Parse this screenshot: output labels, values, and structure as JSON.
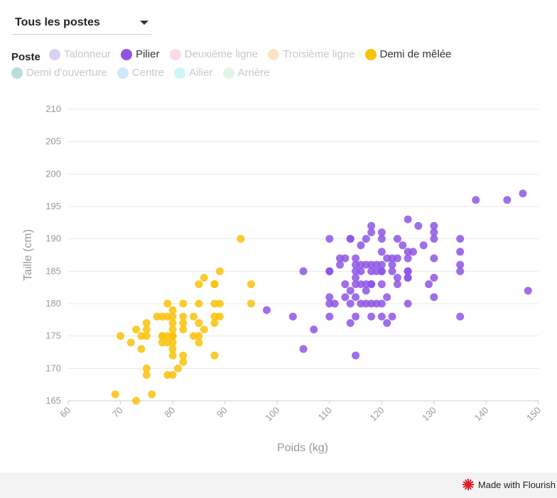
{
  "filter": {
    "selected": "Tous les postes"
  },
  "legend": {
    "title": "Poste",
    "items": [
      {
        "label": "Talonneur",
        "color": "#d6d2f5",
        "active": false
      },
      {
        "label": "Pilier",
        "color": "#8e55e5",
        "active": true
      },
      {
        "label": "Deuxième ligne",
        "color": "#fadde3",
        "active": false
      },
      {
        "label": "Troisième ligne",
        "color": "#fde3c6",
        "active": false
      },
      {
        "label": "Demi de mêlée",
        "color": "#f9c20a",
        "active": true
      },
      {
        "label": "Demi d'ouverture",
        "color": "#bcdce0",
        "active": false
      },
      {
        "label": "Centre",
        "color": "#cfe6fb",
        "active": false
      },
      {
        "label": "Ailier",
        "color": "#ccf6f8",
        "active": false
      },
      {
        "label": "Arrière",
        "color": "#dff6e4",
        "active": false
      }
    ]
  },
  "footer": {
    "credit": "Made with Flourish"
  },
  "chart_data": {
    "type": "scatter",
    "xlabel": "Poids (kg)",
    "ylabel": "Taille (cm)",
    "xlim": [
      60,
      150
    ],
    "ylim": [
      165,
      210
    ],
    "xticks": [
      60,
      70,
      80,
      90,
      100,
      110,
      120,
      130,
      140,
      150
    ],
    "yticks": [
      165,
      170,
      175,
      180,
      185,
      190,
      195,
      200,
      205,
      210
    ],
    "grid": "horizontal",
    "series": [
      {
        "name": "Demi de mêlée",
        "color": "#f9c20a",
        "points": [
          [
            69,
            166
          ],
          [
            70,
            175
          ],
          [
            72,
            174
          ],
          [
            73,
            165
          ],
          [
            73,
            176
          ],
          [
            74,
            173
          ],
          [
            74,
            175
          ],
          [
            75,
            170
          ],
          [
            75,
            169
          ],
          [
            75,
            175
          ],
          [
            75,
            176
          ],
          [
            75,
            177
          ],
          [
            76,
            166
          ],
          [
            77,
            178
          ],
          [
            78,
            178
          ],
          [
            78,
            175
          ],
          [
            78,
            174
          ],
          [
            78,
            175
          ],
          [
            79,
            178
          ],
          [
            79,
            180
          ],
          [
            79,
            175
          ],
          [
            79,
            174
          ],
          [
            79,
            169
          ],
          [
            80,
            179
          ],
          [
            80,
            177
          ],
          [
            80,
            176
          ],
          [
            80,
            175
          ],
          [
            80,
            174
          ],
          [
            80,
            173
          ],
          [
            80,
            172
          ],
          [
            80,
            169
          ],
          [
            80,
            178
          ],
          [
            80,
            175
          ],
          [
            81,
            170
          ],
          [
            82,
            180
          ],
          [
            82,
            178
          ],
          [
            82,
            177
          ],
          [
            82,
            176
          ],
          [
            82,
            172
          ],
          [
            82,
            171
          ],
          [
            84,
            178
          ],
          [
            84,
            175
          ],
          [
            85,
            183
          ],
          [
            85,
            180
          ],
          [
            85,
            177
          ],
          [
            85,
            175
          ],
          [
            85,
            174
          ],
          [
            86,
            184
          ],
          [
            86,
            176
          ],
          [
            88,
            183
          ],
          [
            88,
            183
          ],
          [
            88,
            180
          ],
          [
            88,
            178
          ],
          [
            88,
            177
          ],
          [
            88,
            172
          ],
          [
            89,
            185
          ],
          [
            89,
            180
          ],
          [
            89,
            178
          ],
          [
            93,
            190
          ],
          [
            95,
            183
          ],
          [
            95,
            180
          ]
        ]
      },
      {
        "name": "Pilier",
        "color": "#8e55e5",
        "points": [
          [
            98,
            179
          ],
          [
            103,
            178
          ],
          [
            105,
            185
          ],
          [
            105,
            173
          ],
          [
            107,
            176
          ],
          [
            110,
            190
          ],
          [
            110,
            185
          ],
          [
            110,
            185
          ],
          [
            110,
            181
          ],
          [
            110,
            180
          ],
          [
            110,
            178
          ],
          [
            111,
            180
          ],
          [
            112,
            187
          ],
          [
            112,
            186
          ],
          [
            113,
            187
          ],
          [
            113,
            183
          ],
          [
            113,
            181
          ],
          [
            114,
            190
          ],
          [
            114,
            190
          ],
          [
            114,
            182
          ],
          [
            114,
            180
          ],
          [
            114,
            177
          ],
          [
            115,
            187
          ],
          [
            115,
            186
          ],
          [
            115,
            185
          ],
          [
            115,
            184
          ],
          [
            115,
            183
          ],
          [
            115,
            181
          ],
          [
            115,
            178
          ],
          [
            115,
            172
          ],
          [
            116,
            189
          ],
          [
            116,
            186
          ],
          [
            116,
            185
          ],
          [
            116,
            183
          ],
          [
            116,
            180
          ],
          [
            117,
            190
          ],
          [
            117,
            186
          ],
          [
            117,
            183
          ],
          [
            117,
            182
          ],
          [
            117,
            180
          ],
          [
            118,
            192
          ],
          [
            118,
            191
          ],
          [
            118,
            186
          ],
          [
            118,
            185
          ],
          [
            118,
            183
          ],
          [
            118,
            183
          ],
          [
            118,
            180
          ],
          [
            118,
            178
          ],
          [
            119,
            186
          ],
          [
            119,
            185
          ],
          [
            119,
            180
          ],
          [
            120,
            191
          ],
          [
            120,
            190
          ],
          [
            120,
            188
          ],
          [
            120,
            186
          ],
          [
            120,
            185
          ],
          [
            120,
            185
          ],
          [
            120,
            183
          ],
          [
            120,
            180
          ],
          [
            120,
            178
          ],
          [
            121,
            187
          ],
          [
            121,
            181
          ],
          [
            121,
            177
          ],
          [
            122,
            187
          ],
          [
            122,
            186
          ],
          [
            122,
            185
          ],
          [
            122,
            178
          ],
          [
            123,
            190
          ],
          [
            123,
            187
          ],
          [
            123,
            184
          ],
          [
            123,
            183
          ],
          [
            124,
            189
          ],
          [
            125,
            193
          ],
          [
            125,
            188
          ],
          [
            125,
            187
          ],
          [
            125,
            185
          ],
          [
            125,
            185
          ],
          [
            125,
            184
          ],
          [
            125,
            184
          ],
          [
            125,
            180
          ],
          [
            126,
            188
          ],
          [
            127,
            192
          ],
          [
            128,
            189
          ],
          [
            129,
            183
          ],
          [
            130,
            192
          ],
          [
            130,
            191
          ],
          [
            130,
            190
          ],
          [
            130,
            187
          ],
          [
            130,
            184
          ],
          [
            130,
            181
          ],
          [
            135,
            190
          ],
          [
            135,
            188
          ],
          [
            135,
            186
          ],
          [
            135,
            185
          ],
          [
            135,
            178
          ],
          [
            138,
            196
          ],
          [
            144,
            196
          ],
          [
            147,
            197
          ],
          [
            148,
            182
          ]
        ]
      }
    ]
  }
}
